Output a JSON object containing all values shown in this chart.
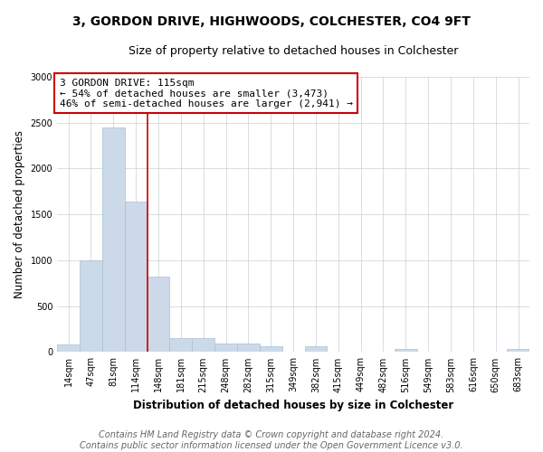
{
  "title": "3, GORDON DRIVE, HIGHWOODS, COLCHESTER, CO4 9FT",
  "subtitle": "Size of property relative to detached houses in Colchester",
  "xlabel": "Distribution of detached houses by size in Colchester",
  "ylabel": "Number of detached properties",
  "footer_line1": "Contains HM Land Registry data © Crown copyright and database right 2024.",
  "footer_line2": "Contains public sector information licensed under the Open Government Licence v3.0.",
  "annotation_title": "3 GORDON DRIVE: 115sqm",
  "annotation_line1": "← 54% of detached houses are smaller (3,473)",
  "annotation_line2": "46% of semi-detached houses are larger (2,941) →",
  "categories": [
    "14sqm",
    "47sqm",
    "81sqm",
    "114sqm",
    "148sqm",
    "181sqm",
    "215sqm",
    "248sqm",
    "282sqm",
    "315sqm",
    "349sqm",
    "382sqm",
    "415sqm",
    "449sqm",
    "482sqm",
    "516sqm",
    "549sqm",
    "583sqm",
    "616sqm",
    "650sqm",
    "683sqm"
  ],
  "values": [
    80,
    1000,
    2450,
    1640,
    820,
    155,
    155,
    90,
    90,
    60,
    5,
    60,
    5,
    0,
    0,
    30,
    0,
    0,
    0,
    0,
    30
  ],
  "bar_color": "#ccd9e8",
  "bar_edge_color": "#a8c0d6",
  "vline_x": 3.5,
  "vline_color": "#cc0000",
  "annotation_box_edge": "#cc0000",
  "background_color": "#ffffff",
  "grid_color": "#c8d0d8",
  "ylim": [
    0,
    3000
  ],
  "yticks": [
    0,
    500,
    1000,
    1500,
    2000,
    2500,
    3000
  ],
  "title_fontsize": 10,
  "subtitle_fontsize": 9,
  "axis_label_fontsize": 8.5,
  "tick_fontsize": 7,
  "annotation_fontsize": 8,
  "footer_fontsize": 7
}
